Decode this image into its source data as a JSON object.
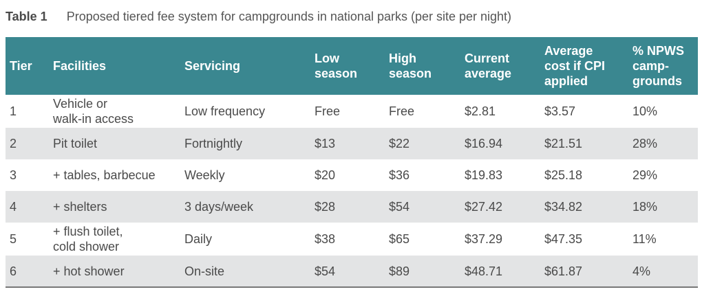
{
  "caption": {
    "label": "Table 1",
    "text": "Proposed tiered fee system for campgrounds in national parks (per site per night)"
  },
  "columns": [
    "Tier",
    "Facilities",
    "Servicing",
    "Low\nseason",
    "High\nseason",
    "Current\naverage",
    "Average\ncost if CPI\napplied",
    "% NPWS\ncamp-\ngrounds"
  ],
  "rows": [
    [
      "1",
      "Vehicle or\nwalk-in access",
      "Low frequency",
      "Free",
      "Free",
      "$2.81",
      "$3.57",
      "10%"
    ],
    [
      "2",
      "Pit toilet",
      "Fortnightly",
      "$13",
      "$22",
      "$16.94",
      "$21.51",
      "28%"
    ],
    [
      "3",
      "+ tables, barbecue",
      "Weekly",
      "$20",
      "$36",
      "$19.83",
      "$25.18",
      "29%"
    ],
    [
      "4",
      "+ shelters",
      "3 days/week",
      "$28",
      "$54",
      "$27.42",
      "$34.82",
      "18%"
    ],
    [
      "5",
      "+ flush toilet,\ncold shower",
      "Daily",
      "$38",
      "$65",
      "$37.29",
      "$47.35",
      "11%"
    ],
    [
      "6",
      "+ hot shower",
      "On-site",
      "$54",
      "$89",
      "$48.71",
      "$61.87",
      "4%"
    ]
  ],
  "colors": {
    "header_bg": "#3a8790",
    "stripe_bg": "#e3e4e5"
  }
}
